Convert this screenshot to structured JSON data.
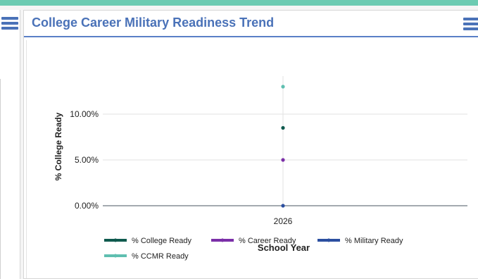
{
  "header": {
    "title": "College Career Military Readiness Trend"
  },
  "icons": {
    "left_menu": "hamburger-menu-icon",
    "chart_menu": "hamburger-menu-icon"
  },
  "colors": {
    "accent": "#4a72b8",
    "top_strip": "#6ccbb2",
    "college_ready": "#0f5a4e",
    "career_ready": "#7b2fa8",
    "military_ready": "#2b4fa0",
    "ccmr_ready": "#5fbfb0"
  },
  "chart_data": {
    "type": "scatter",
    "title": "",
    "xlabel": "School Year",
    "ylabel": "% College Ready",
    "categories": [
      "2026"
    ],
    "y_ticks": [
      "0.00%",
      "5.00%",
      "10.00%"
    ],
    "ylim": [
      0,
      14
    ],
    "grid": true,
    "legend_position": "bottom",
    "series": [
      {
        "name": "% College Ready",
        "values": [
          8.5
        ],
        "color": "#0f5a4e"
      },
      {
        "name": "% Career Ready",
        "values": [
          5.0
        ],
        "color": "#7b2fa8"
      },
      {
        "name": "% Military Ready",
        "values": [
          0.0
        ],
        "color": "#2b4fa0"
      },
      {
        "name": "% CCMR Ready",
        "values": [
          13.0
        ],
        "color": "#5fbfb0"
      }
    ]
  }
}
